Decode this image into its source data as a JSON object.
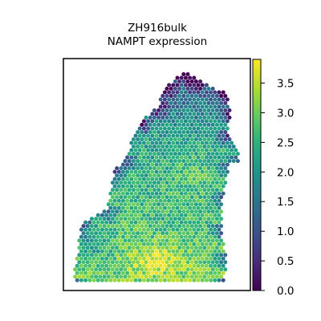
{
  "chart_data": {
    "type": "scatter",
    "title": "ZH916bulk",
    "subtitle": "NAMPT expression",
    "xlabel": "",
    "ylabel": "",
    "markers": "hexagonal spots",
    "colormap": "viridis",
    "colorbar": {
      "position": "right",
      "range": [
        0.0,
        3.9
      ],
      "ticks": [
        "0.0",
        "0.5",
        "1.0",
        "1.5",
        "2.0",
        "2.5",
        "3.0",
        "3.5"
      ]
    },
    "axes_visible": false,
    "grid": false,
    "tissue_outline": [
      [
        0.66,
        0.0
      ],
      [
        0.73,
        0.04
      ],
      [
        0.91,
        0.11
      ],
      [
        0.94,
        0.2
      ],
      [
        0.92,
        0.3
      ],
      [
        1.0,
        0.43
      ],
      [
        0.93,
        0.45
      ],
      [
        0.89,
        0.6
      ],
      [
        0.88,
        0.75
      ],
      [
        0.91,
        0.88
      ],
      [
        0.9,
        1.0
      ],
      [
        0.0,
        1.0
      ],
      [
        0.05,
        0.73
      ],
      [
        0.2,
        0.66
      ],
      [
        0.24,
        0.48
      ],
      [
        0.3,
        0.42
      ],
      [
        0.4,
        0.25
      ],
      [
        0.5,
        0.17
      ],
      [
        0.55,
        0.08
      ]
    ],
    "expression_regions": [
      {
        "region": "upper tissue edge",
        "level": "low",
        "range": [
          0.0,
          1.2
        ]
      },
      {
        "region": "middle tissue",
        "level": "medium",
        "range": [
          2.0,
          3.0
        ]
      },
      {
        "region": "lower center",
        "level": "high",
        "range": [
          3.0,
          3.9
        ]
      },
      {
        "region": "lower left",
        "level": "medium-low",
        "range": [
          1.2,
          2.2
        ]
      }
    ]
  }
}
